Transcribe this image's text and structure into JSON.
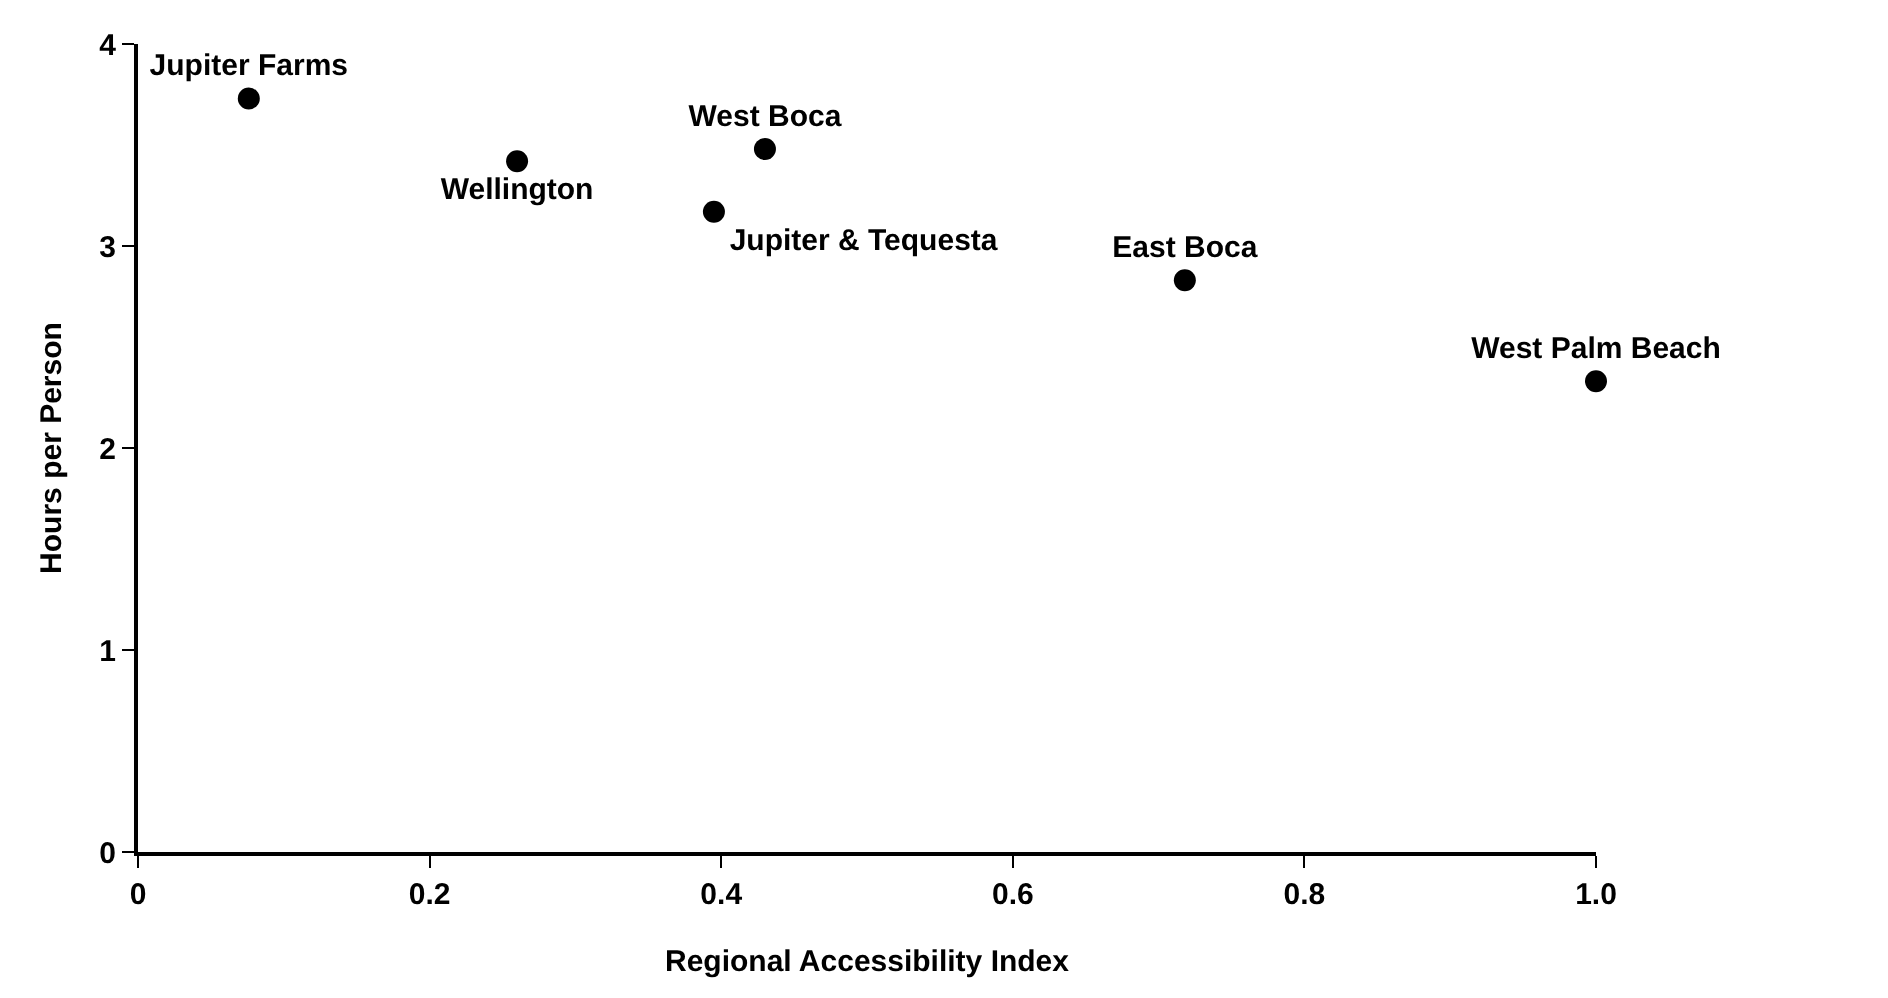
{
  "chart_data": {
    "type": "scatter",
    "xlabel": "Regional Accessibility Index",
    "ylabel": "Hours per Person",
    "series": [
      {
        "name": "Jupiter Farms",
        "color": "#000000",
        "x": [
          0.076
        ],
        "values": [
          3.73
        ]
      },
      {
        "name": "Wellington",
        "color": "#000000",
        "x": [
          0.26
        ],
        "values": [
          3.42
        ]
      },
      {
        "name": "West Boca",
        "color": "#000000",
        "x": [
          0.43
        ],
        "values": [
          3.48
        ]
      },
      {
        "name": "Jupiter & Tequesta",
        "color": "#000000",
        "x": [
          0.395
        ],
        "values": [
          3.17
        ]
      },
      {
        "name": "East Boca",
        "color": "#000000",
        "x": [
          0.718
        ],
        "values": [
          2.83
        ]
      },
      {
        "name": "West Palm Beach",
        "color": "#000000",
        "x": [
          1.0
        ],
        "values": [
          2.33
        ]
      }
    ],
    "xlim": [
      0,
      1
    ],
    "xticks": [
      0,
      0.2,
      0.4,
      0.6,
      0.8,
      {
        "value": 1,
        "label": "1.0"
      }
    ],
    "ylim": [
      0,
      4
    ],
    "yticks": [
      0,
      1,
      2,
      3,
      4
    ],
    "legend": false,
    "marker": "circle"
  }
}
